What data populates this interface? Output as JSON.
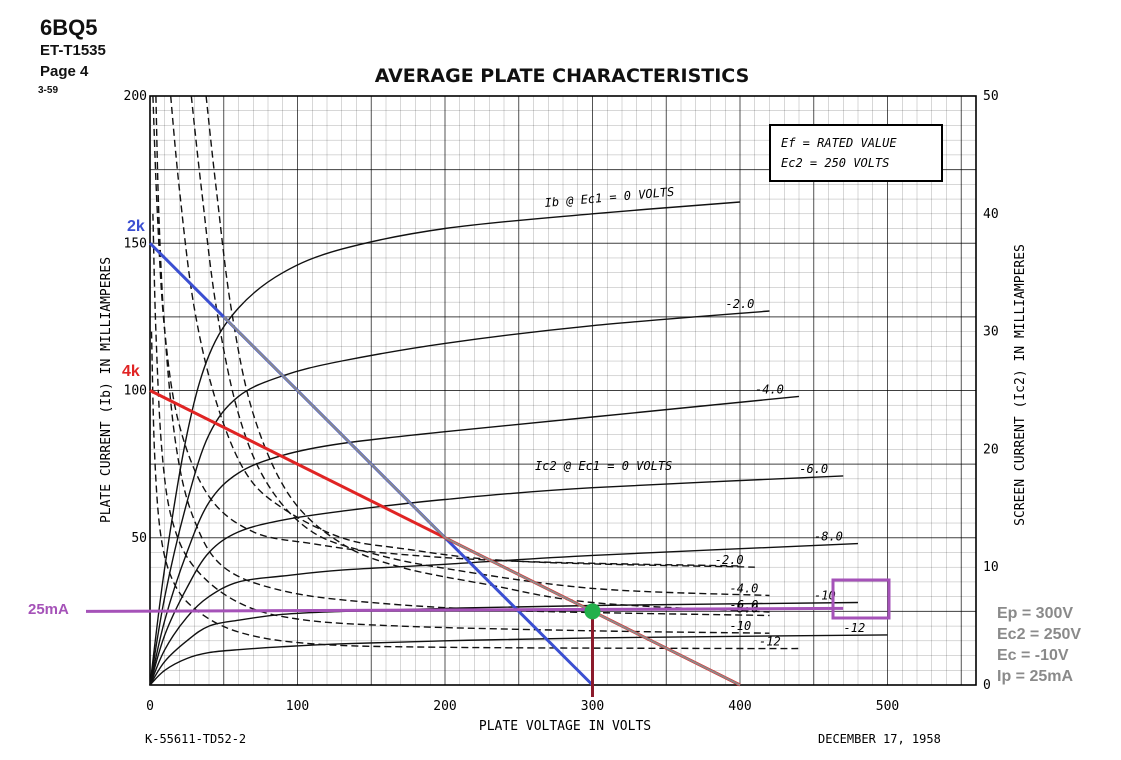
{
  "header": {
    "tube": "6BQ5",
    "doc_id": "ET-T1535",
    "page": "Page 4",
    "rev": "3-59"
  },
  "footer": {
    "drawing_no": "K-55611-TD52-2",
    "date": "DECEMBER 17, 1958"
  },
  "conditions": {
    "line1": "Ef = RATED VALUE",
    "line2": "Ec2 = 250 VOLTS"
  },
  "annotations": {
    "load_2k": "2k",
    "load_4k": "4k",
    "ip_marker": "25mA",
    "op_ep": "Ep = 300V",
    "op_ec2": "Ec2 = 250V",
    "op_ec": "Ec = -10V",
    "op_ip": "Ip = 25mA",
    "plate_family_label": "Ib @ Ec1 = 0 VOLTS",
    "screen_family_label": "Ic2 @ Ec1 = 0 VOLTS"
  },
  "colors": {
    "curve": "#111111",
    "grid": "#000000",
    "load_2k": "#3b4fd1",
    "load_4k": "#e02424",
    "load_overlay": "#8c8c8c",
    "ip_line": "#a552b8",
    "op_point": "#22b04b",
    "op_drop": "#8b1a2b",
    "side_text": "#8a8a8a"
  },
  "chart_data": {
    "type": "line",
    "title": "AVERAGE PLATE CHARACTERISTICS",
    "xlabel": "PLATE VOLTAGE IN VOLTS",
    "ylabel": "PLATE CURRENT (Ib) IN MILLIAMPERES",
    "y2label": "SCREEN CURRENT (Ic2) IN MILLIAMPERES",
    "xlim": [
      0,
      560
    ],
    "ylim": [
      0,
      200
    ],
    "y2lim": [
      0,
      50
    ],
    "x_ticks": [
      "0",
      "100",
      "200",
      "300",
      "400",
      "500"
    ],
    "y_ticks": [
      "50",
      "100",
      "150",
      "200"
    ],
    "y2_ticks": [
      "0",
      "10",
      "20",
      "30",
      "40",
      "50"
    ],
    "grid": true,
    "plate_curves": [
      {
        "label": "",
        "points": [
          [
            0,
            0
          ],
          [
            10,
            40
          ],
          [
            25,
            85
          ],
          [
            40,
            112
          ],
          [
            60,
            128
          ],
          [
            90,
            140
          ],
          [
            130,
            148
          ],
          [
            200,
            155
          ],
          [
            300,
            160
          ],
          [
            400,
            164
          ]
        ]
      },
      {
        "label": "-2.0",
        "points": [
          [
            0,
            0
          ],
          [
            10,
            30
          ],
          [
            25,
            62
          ],
          [
            40,
            85
          ],
          [
            60,
            98
          ],
          [
            90,
            105
          ],
          [
            130,
            110
          ],
          [
            200,
            116
          ],
          [
            300,
            122
          ],
          [
            420,
            127
          ]
        ]
      },
      {
        "label": "-4.0",
        "points": [
          [
            0,
            0
          ],
          [
            10,
            22
          ],
          [
            25,
            45
          ],
          [
            40,
            62
          ],
          [
            60,
            72
          ],
          [
            90,
            78
          ],
          [
            130,
            82
          ],
          [
            200,
            86
          ],
          [
            300,
            91
          ],
          [
            440,
            98
          ]
        ]
      },
      {
        "label": "-6.0",
        "points": [
          [
            0,
            0
          ],
          [
            10,
            17
          ],
          [
            25,
            33
          ],
          [
            40,
            45
          ],
          [
            60,
            52
          ],
          [
            90,
            56
          ],
          [
            130,
            59
          ],
          [
            200,
            63
          ],
          [
            300,
            67
          ],
          [
            470,
            71
          ]
        ]
      },
      {
        "label": "-8.0",
        "points": [
          [
            0,
            0
          ],
          [
            10,
            12
          ],
          [
            25,
            23
          ],
          [
            40,
            30
          ],
          [
            60,
            35
          ],
          [
            90,
            37
          ],
          [
            130,
            39
          ],
          [
            200,
            41
          ],
          [
            300,
            44
          ],
          [
            480,
            48
          ]
        ]
      },
      {
        "label": "-10",
        "points": [
          [
            0,
            0
          ],
          [
            10,
            8
          ],
          [
            25,
            15
          ],
          [
            40,
            20
          ],
          [
            60,
            22
          ],
          [
            90,
            24
          ],
          [
            130,
            25
          ],
          [
            200,
            26
          ],
          [
            300,
            27
          ],
          [
            480,
            28
          ]
        ]
      },
      {
        "label": "-12",
        "points": [
          [
            0,
            0
          ],
          [
            10,
            5
          ],
          [
            25,
            9
          ],
          [
            40,
            11
          ],
          [
            60,
            12
          ],
          [
            90,
            13
          ],
          [
            130,
            14
          ],
          [
            200,
            15
          ],
          [
            300,
            16
          ],
          [
            500,
            17
          ]
        ]
      }
    ],
    "screen_curves": [
      {
        "label": "",
        "points": [
          [
            2,
            50
          ],
          [
            5,
            40
          ],
          [
            10,
            30
          ],
          [
            20,
            22
          ],
          [
            40,
            16
          ],
          [
            70,
            13
          ],
          [
            110,
            12
          ],
          [
            160,
            11.2
          ],
          [
            250,
            10.5
          ],
          [
            400,
            10.1
          ]
        ]
      },
      {
        "label": "-2.0",
        "points": [
          [
            14,
            50
          ],
          [
            20,
            42
          ],
          [
            30,
            32
          ],
          [
            45,
            24
          ],
          [
            65,
            18
          ],
          [
            90,
            15
          ],
          [
            130,
            12.5
          ],
          [
            170,
            11.6
          ],
          [
            250,
            10.5
          ],
          [
            410,
            10
          ]
        ]
      },
      {
        "label": "-4.0",
        "points": [
          [
            28,
            50
          ],
          [
            35,
            42
          ],
          [
            45,
            32
          ],
          [
            60,
            23
          ],
          [
            80,
            17
          ],
          [
            110,
            13
          ],
          [
            150,
            11.2
          ],
          [
            200,
            9.9
          ],
          [
            300,
            8.2
          ],
          [
            420,
            7.6
          ]
        ]
      },
      {
        "label": "-6.0",
        "points": [
          [
            38,
            50
          ],
          [
            45,
            42
          ],
          [
            55,
            32
          ],
          [
            70,
            23
          ],
          [
            95,
            16
          ],
          [
            130,
            12
          ],
          [
            170,
            10
          ],
          [
            230,
            8.5
          ],
          [
            300,
            7
          ],
          [
            420,
            6.2
          ]
        ]
      },
      {
        "label": "-8.0",
        "points": [
          [
            4,
            50
          ],
          [
            6,
            40
          ],
          [
            10,
            30
          ],
          [
            18,
            20
          ],
          [
            30,
            14
          ],
          [
            50,
            10
          ],
          [
            90,
            8
          ],
          [
            150,
            7
          ],
          [
            250,
            6.3
          ],
          [
            420,
            5.9
          ]
        ]
      },
      {
        "label": "-10",
        "points": [
          [
            2,
            40
          ],
          [
            4,
            30
          ],
          [
            8,
            20
          ],
          [
            15,
            14
          ],
          [
            30,
            10
          ],
          [
            60,
            7
          ],
          [
            100,
            5.6
          ],
          [
            170,
            5
          ],
          [
            300,
            4.6
          ],
          [
            420,
            4.4
          ]
        ]
      },
      {
        "label": "-12",
        "points": [
          [
            1,
            30
          ],
          [
            3,
            20
          ],
          [
            7,
            13
          ],
          [
            15,
            9
          ],
          [
            30,
            6.5
          ],
          [
            60,
            4.5
          ],
          [
            110,
            3.5
          ],
          [
            200,
            3.2
          ],
          [
            400,
            3.1
          ],
          [
            440,
            3.1
          ]
        ]
      }
    ],
    "load_lines": [
      {
        "name": "2k",
        "from": [
          0,
          150
        ],
        "to": [
          300,
          0
        ]
      },
      {
        "name": "4k",
        "from": [
          0,
          100
        ],
        "to": [
          400,
          0
        ]
      }
    ],
    "operating_point": {
      "x": 300,
      "y": 25
    },
    "ip_line_y": 25
  }
}
